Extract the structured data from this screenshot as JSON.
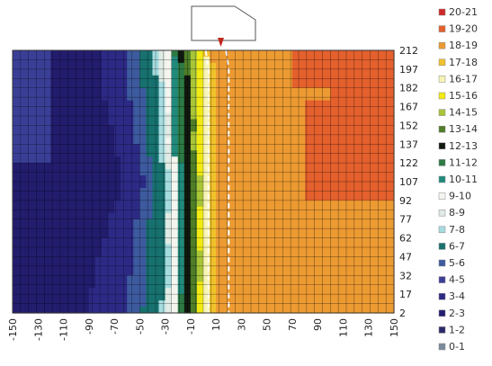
{
  "chart_data": {
    "type": "heatmap",
    "title": "",
    "xlabel": "",
    "ylabel": "",
    "x_ticks": [
      "-150",
      "-130",
      "-110",
      "-90",
      "-70",
      "-50",
      "-30",
      "-10",
      "10",
      "30",
      "50",
      "70",
      "90",
      "110",
      "130",
      "150"
    ],
    "y_ticks": [
      "212",
      "197",
      "182",
      "167",
      "152",
      "137",
      "122",
      "107",
      "92",
      "77",
      "62",
      "47",
      "32",
      "17",
      "2"
    ],
    "xlim": [
      -150,
      150
    ],
    "ylim": [
      2,
      212
    ],
    "grid": true,
    "legend_position": "right",
    "legend": [
      {
        "label": "20-21",
        "color": "#d0282a"
      },
      {
        "label": "19-20",
        "color": "#e4602c"
      },
      {
        "label": "18-19",
        "color": "#ec9a32"
      },
      {
        "label": "17-18",
        "color": "#f1c22c"
      },
      {
        "label": "16-17",
        "color": "#f7f3b4"
      },
      {
        "label": "15-16",
        "color": "#f2ea12"
      },
      {
        "label": "14-15",
        "color": "#a9c538"
      },
      {
        "label": "13-14",
        "color": "#4f7e28"
      },
      {
        "label": "12-13",
        "color": "#10190e"
      },
      {
        "label": "11-12",
        "color": "#2c7a44"
      },
      {
        "label": "10-11",
        "color": "#218a7c"
      },
      {
        "label": "9-10",
        "color": "#f5f5f0"
      },
      {
        "label": "8-9",
        "color": "#e0ebe5"
      },
      {
        "label": "7-8",
        "color": "#a6dce0"
      },
      {
        "label": "6-7",
        "color": "#17716f"
      },
      {
        "label": "5-6",
        "color": "#3d5a9e"
      },
      {
        "label": "4-5",
        "color": "#3a3f96"
      },
      {
        "label": "3-4",
        "color": "#2d2a86"
      },
      {
        "label": "2-3",
        "color": "#231d6e"
      },
      {
        "label": "1-2",
        "color": "#2a2a6a"
      },
      {
        "label": "0-1",
        "color": "#7a8a9c"
      }
    ],
    "contours": {
      "min_x": [
        -80,
        -78,
        -82,
        -76,
        -72,
        -70,
        -66,
        -64,
        -68,
        -74,
        -78,
        -82,
        -85,
        -88,
        -90
      ],
      "cool_warm_boundary_x": [
        -40,
        -38,
        -36,
        -36,
        -34,
        -36,
        -32,
        -30,
        -30,
        -32,
        -32,
        -30,
        -30,
        -32,
        -34
      ],
      "hot_boundary_x": [
        6,
        8,
        8,
        8,
        8,
        8,
        8,
        8,
        8,
        8,
        8,
        8,
        8,
        8,
        8
      ]
    }
  }
}
